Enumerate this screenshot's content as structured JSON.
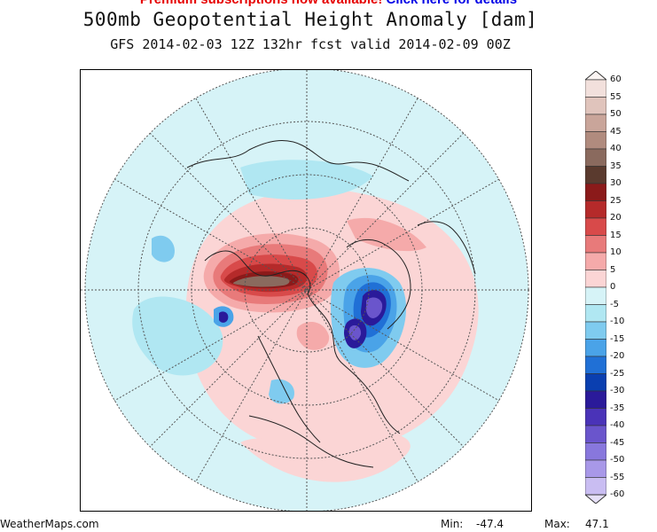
{
  "banner": {
    "text_red": "Premium subscriptions now available!",
    "text_blue": "Click here for details"
  },
  "header": {
    "title": "500mb Geopotential Height Anomaly [dam]",
    "subtitle": "GFS 2014-02-03 12Z 132hr fcst valid 2014-02-09 00Z"
  },
  "colorbar": {
    "labels": [
      "60",
      "55",
      "50",
      "45",
      "40",
      "35",
      "30",
      "25",
      "20",
      "15",
      "10",
      "5",
      "0",
      "-5",
      "-10",
      "-15",
      "-20",
      "-25",
      "-30",
      "-35",
      "-40",
      "-45",
      "-50",
      "-55",
      "-60"
    ],
    "colors": [
      "#f2e0dc",
      "#e0c4bc",
      "#c9a59a",
      "#b08b7e",
      "#8a6a5e",
      "#5a3a2e",
      "#8b1a1a",
      "#b52a2a",
      "#d84a4a",
      "#e87a7a",
      "#f5aaaa",
      "#fbd5d5",
      "#d6f3f7",
      "#b0e7f2",
      "#7fcbef",
      "#4aa3e8",
      "#2070d6",
      "#0a3fb0",
      "#2a1a9a",
      "#4a33b8",
      "#6a55cc",
      "#8877dd",
      "#a898e8",
      "#c9bdf2"
    ]
  },
  "footer": {
    "site": "WeatherMaps.com",
    "min_label": "Min:",
    "min_value": "-47.4",
    "max_label": "Max:",
    "max_value": "47.1"
  }
}
